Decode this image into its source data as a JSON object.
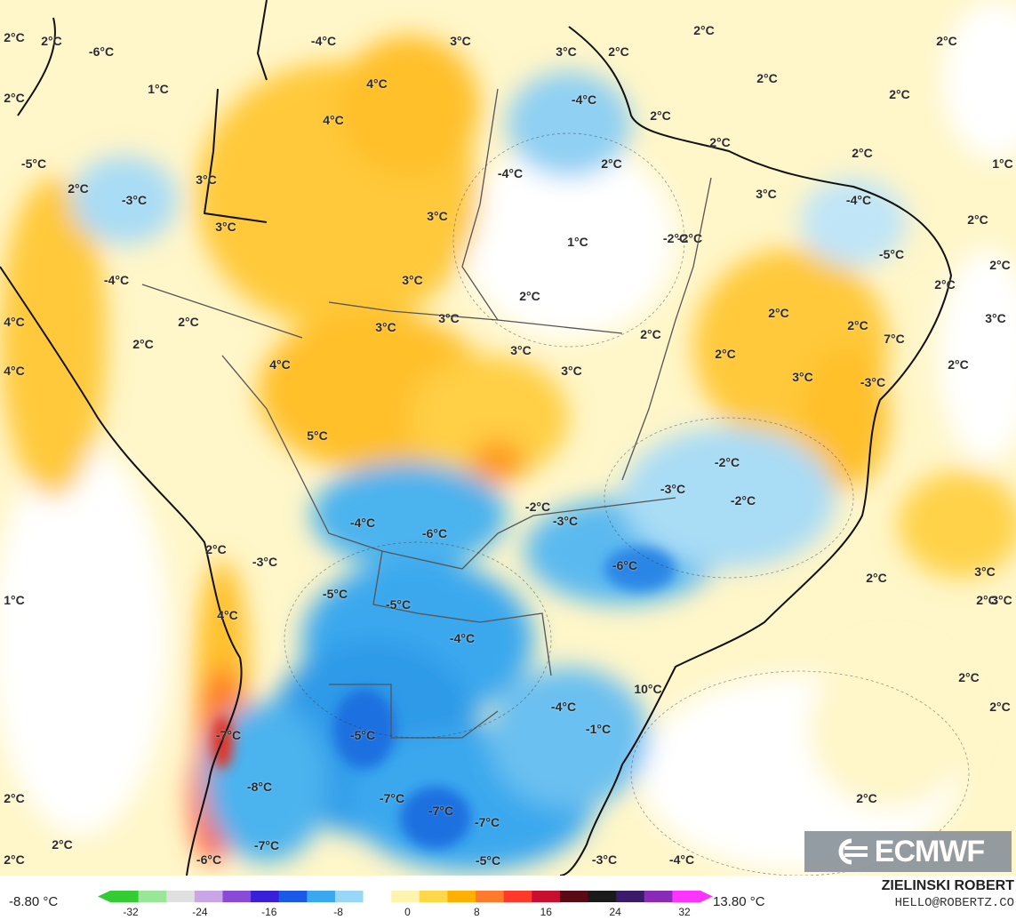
{
  "map": {
    "labels": [
      "2°C",
      "2°C",
      "-6°C",
      "-4°C",
      "3°C",
      "3°C",
      "2°C",
      "2°C",
      "2°C",
      "1°C",
      "4°C",
      "4°C",
      "-4°C",
      "2°C",
      "2°C",
      "2°C",
      "2°C",
      "1°C",
      "2°C",
      "-4°C",
      "2°C",
      "-5°C",
      "3°C",
      "-3°C",
      "2°C",
      "3°C",
      "1°C",
      "-2°C",
      "3°C",
      "-4°C",
      "2°C",
      "-4°C",
      "3°C",
      "-5°C",
      "2°C",
      "2°C",
      "4°C",
      "2°C",
      "2°C",
      "3°C",
      "2°C",
      "2°C",
      "2°C",
      "3°C",
      "3°C",
      "3°C",
      "4°C",
      "3°C",
      "3°C",
      "2°C",
      "4°C",
      "5°C",
      "2°C",
      "7°C",
      "2°C",
      "-2°C",
      "3°C",
      "-3°C",
      "-4°C",
      "-6°C",
      "-2°C",
      "-3°C",
      "-3°C",
      "-2°C",
      "-5°C",
      "-5°C",
      "-6°C",
      "2°C",
      "2°C",
      "-2°C",
      "1°C",
      "4°C",
      "2°C",
      "-4°C",
      "3°C",
      "3°C",
      "2°C",
      "-3°C",
      "10°C",
      "-7°C",
      "-5°C",
      "-4°C",
      "2°C",
      "-8°C",
      "-1°C",
      "-7°C",
      "-7°C",
      "2°C",
      "2°C",
      "-7°C",
      "-7°C",
      "2°C",
      "2°C",
      "-4°C",
      "-5°C",
      "-3°C",
      "2°C",
      "-6°C"
    ]
  },
  "logo": {
    "text": "ECMWF"
  },
  "colorbar": {
    "min_label": "-8.80 °C",
    "max_label": "13.80 °C",
    "ticks": [
      "-32",
      "-24",
      "-16",
      "-8",
      "0",
      "8",
      "16",
      "24",
      "32"
    ],
    "colors": [
      "#33cc33",
      "#99e699",
      "#e0e0e0",
      "#c9a6e6",
      "#8a4ad8",
      "#3a1fd8",
      "#1a5ae6",
      "#3aa8ee",
      "#9ad6f5",
      "#ffffff",
      "#fff3b0",
      "#ffd84a",
      "#ffb000",
      "#ff7a2a",
      "#ff3a2a",
      "#c8102e",
      "#5a0a14",
      "#1a1a1a",
      "#3a1a6a",
      "#8a2ab8",
      "#ff33ff"
    ]
  },
  "credit": {
    "author": "ZIELINSKI ROBERT",
    "email": "HELLO@ROBERTZ.CO"
  }
}
